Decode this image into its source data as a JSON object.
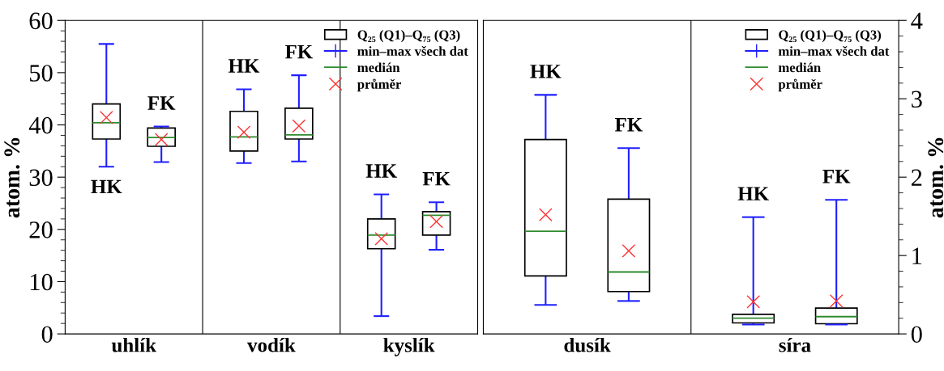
{
  "chart_data": [
    {
      "type": "box",
      "categories": [
        "uhlík",
        "vodík",
        "kyslík"
      ],
      "ylabel": "atom. %",
      "ylim": [
        0,
        60
      ],
      "yticks": [
        0,
        10,
        20,
        30,
        40,
        50,
        60
      ],
      "annotations": [
        "Q₂₅ (Q1)–Q₇₅ (Q3)",
        "min–max všech dat",
        "medián",
        "průměr"
      ],
      "series": [
        {
          "name": "HK",
          "boxes": [
            {
              "low": 32.0,
              "q1": 37.3,
              "median": 40.4,
              "q3": 44.0,
              "high": 55.5,
              "mean": 41.4
            },
            {
              "low": 32.7,
              "q1": 35.0,
              "median": 37.7,
              "q3": 42.6,
              "high": 46.8,
              "mean": 38.6
            },
            {
              "low": 3.4,
              "q1": 16.3,
              "median": 18.9,
              "q3": 22.0,
              "high": 26.7,
              "mean": 18.2
            }
          ]
        },
        {
          "name": "FK",
          "boxes": [
            {
              "low": 32.9,
              "q1": 35.9,
              "median": 37.6,
              "q3": 39.4,
              "high": 39.7,
              "mean": 37.2
            },
            {
              "low": 33.0,
              "q1": 37.3,
              "median": 38.1,
              "q3": 43.2,
              "high": 49.5,
              "mean": 39.8
            },
            {
              "low": 16.1,
              "q1": 18.9,
              "median": 22.7,
              "q3": 23.4,
              "high": 25.2,
              "mean": 21.5
            }
          ]
        }
      ]
    },
    {
      "type": "box",
      "categories": [
        "dusík",
        "síra"
      ],
      "y2label": "atom. %",
      "y2lim": [
        0,
        4
      ],
      "y2ticks": [
        0,
        1,
        2,
        3,
        4
      ],
      "annotations": [
        "Q₂₅ (Q1)–Q₇₅ (Q3)",
        "min–max všech dat",
        "medián",
        "průměr"
      ],
      "series": [
        {
          "name": "HK",
          "axis": "y2",
          "boxes": [
            {
              "low": 0.37,
              "q1": 0.74,
              "median": 1.31,
              "q3": 2.48,
              "high": 3.05,
              "mean": 1.52
            },
            {
              "low": 0.12,
              "q1": 0.14,
              "median": 0.2,
              "q3": 0.25,
              "high": 1.49,
              "mean": 0.41
            }
          ]
        },
        {
          "name": "FK",
          "axis": "y2",
          "boxes": [
            {
              "low": 0.42,
              "q1": 0.54,
              "median": 0.79,
              "q3": 1.72,
              "high": 2.37,
              "mean": 1.06
            },
            {
              "low": 0.12,
              "q1": 0.13,
              "median": 0.22,
              "q3": 0.33,
              "high": 1.71,
              "mean": 0.42
            }
          ]
        }
      ]
    }
  ]
}
